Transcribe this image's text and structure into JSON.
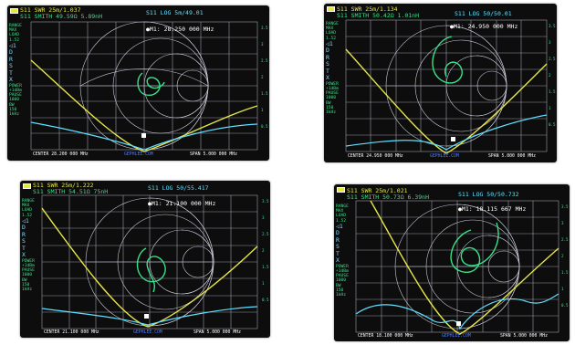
{
  "screens": [
    {
      "trace1": "S11 SWR 25m/1.037",
      "trace2": "S11 SMITH 49.59Ω 5.89nH",
      "trace3": "S11 LOG 5m/49.01",
      "marker": "●M1: 28.250 000 MHz",
      "center": "CENTER 28.200 000 MHz",
      "brand": "GEPHLEE.COM",
      "span": "SPAN 5.000 000 MHz",
      "side": [
        "RANGE",
        "MAX",
        "LOAD",
        "1.52",
        "LOOKUP",
        "TRAC",
        "POWER",
        "+1dBm",
        "PAUSE",
        "1000",
        "BW",
        "150",
        "1kHz"
      ],
      "side_letters": [
        "◁1",
        "D",
        "R",
        "S",
        "T",
        "X"
      ],
      "right_axis": [
        "3.5",
        "3",
        "2.5",
        "2",
        "1.5",
        "1",
        "0.5"
      ]
    },
    {
      "trace1": "S11 SWR 25m/1.134",
      "trace2": "S11 SMITH 50.42Ω 1.01nH",
      "trace3": "S11 LOG 50/50.01",
      "marker": "●M1: 24.950 000 MHz",
      "center": "CENTER 24.950 000 MHz",
      "brand": "GEPHLEE.COM",
      "span": "SPAN 5.000 000 MHz",
      "side": [
        "RANGE",
        "MAX",
        "LOAD",
        "1.52",
        "LOOKUP",
        "TRAC",
        "POWER",
        "+1dBm",
        "PAUSE",
        "1000",
        "BW",
        "150",
        "1kHz"
      ],
      "side_letters": [
        "◁1",
        "D",
        "R",
        "S",
        "T",
        "X"
      ],
      "right_axis": [
        "3.5",
        "3",
        "2.5",
        "2",
        "1.5",
        "1",
        "0.5"
      ]
    },
    {
      "trace1": "S11 SWR 25m/1.222",
      "trace2": "S11 SMITH 54.51Ω 75nH",
      "trace3": "S11 LOG 50/55.417",
      "marker": "●M1: 21.100 000 MHz",
      "center": "CENTER 21.100 000 MHz",
      "brand": "GEPHLEE.COM",
      "span": "SPAN 5.000 000 MHz",
      "side": [
        "RANGE",
        "MAX",
        "LOAD",
        "1.52",
        "LOOKUP",
        "TRAC",
        "POWER",
        "+1dBm",
        "PAUSE",
        "1000",
        "BW",
        "150",
        "1kHz"
      ],
      "side_letters": [
        "◁1",
        "D",
        "R",
        "S",
        "T",
        "X"
      ],
      "right_axis": [
        "3.5",
        "3",
        "2.5",
        "2",
        "1.5",
        "1",
        "0.5"
      ]
    },
    {
      "trace1": "S11 SWR 25m/1.021",
      "trace2": "S11 SMITH 50.73Ω 6.39nH",
      "trace3": "S11 LOG 50/50.732",
      "marker": "●M1: 18.115 667 MHz",
      "center": "CENTER 18.100 000 MHz",
      "brand": "GEPHLEE.COM",
      "span": "SPAN 5.000 000 MHz",
      "side": [
        "RANGE",
        "MAX",
        "LOAD",
        "1.52",
        "LOOKUP",
        "TRAC",
        "POWER",
        "+1dBm",
        "PAUSE",
        "1000",
        "BW",
        "150",
        "1kHz"
      ],
      "side_letters": [
        "◁1",
        "D",
        "R",
        "S",
        "T",
        "X"
      ],
      "right_axis": [
        "3.5",
        "3",
        "2.5",
        "2",
        "1.5",
        "1",
        "0.5"
      ]
    }
  ],
  "colors": {
    "trace1": "#e6e64a",
    "trace2": "#39e08a",
    "trace3": "#5fe0ff",
    "grid": "#9a9aa8",
    "screen_bg": "#0d0d0d"
  }
}
